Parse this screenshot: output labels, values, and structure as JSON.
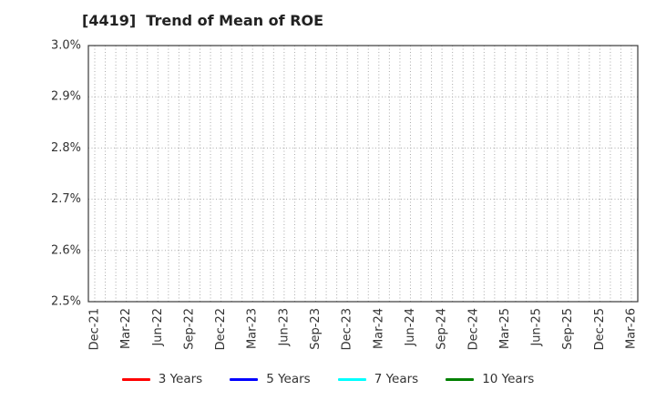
{
  "page": {
    "background": "#ffffff"
  },
  "chart_data": {
    "type": "line",
    "title": "[4419]  Trend of Mean of ROE",
    "xlabel": "",
    "ylabel": "",
    "x_ticks": [
      "Dec-21",
      "Mar-22",
      "Jun-22",
      "Sep-22",
      "Dec-22",
      "Mar-23",
      "Jun-23",
      "Sep-23",
      "Dec-23",
      "Mar-24",
      "Jun-24",
      "Sep-24",
      "Dec-24",
      "Mar-25",
      "Jun-25",
      "Sep-25",
      "Dec-25",
      "Mar-26"
    ],
    "x_minor_per_quarter": 3,
    "y_ticks": [
      "3.0%",
      "2.9%",
      "2.8%",
      "2.7%",
      "2.6%",
      "2.5%"
    ],
    "ylim_percent": [
      2.5,
      3.0
    ],
    "grid": "dotted",
    "legend_position": "bottom-center",
    "plot_area_empty": true,
    "series": [
      {
        "name": "3 Years",
        "color": "#ff0000",
        "values": []
      },
      {
        "name": "5 Years",
        "color": "#0000ff",
        "values": []
      },
      {
        "name": "7 Years",
        "color": "#00ffff",
        "values": []
      },
      {
        "name": "10 Years",
        "color": "#008000",
        "values": []
      }
    ]
  },
  "colors": {
    "text": "#333333",
    "grid": "#aaaaaa",
    "frame": "#3a3a3a",
    "title": "#222222"
  }
}
